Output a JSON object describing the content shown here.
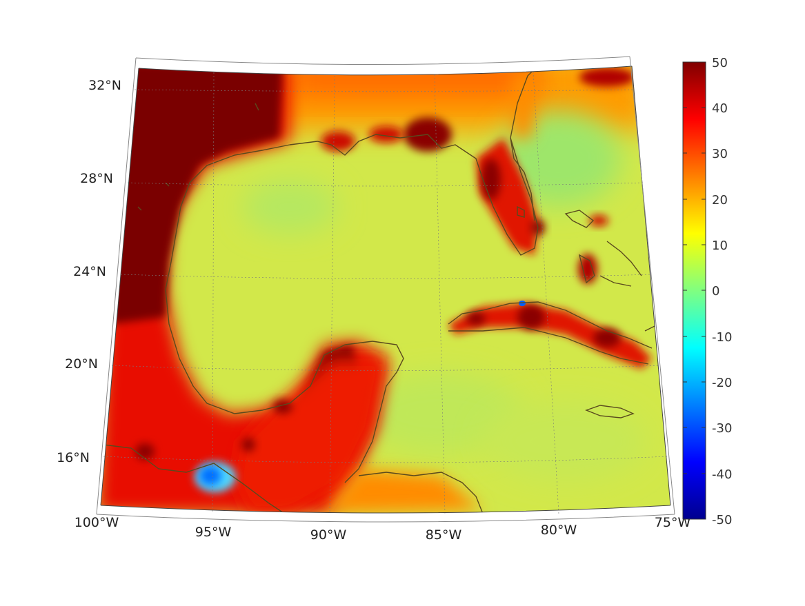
{
  "map": {
    "projection": "conic",
    "grid": true,
    "lon_labels": [
      "100°W",
      "95°W",
      "90°W",
      "85°W",
      "80°W",
      "75°W"
    ],
    "lat_labels": [
      "16°N",
      "20°N",
      "24°N",
      "28°N",
      "32°N"
    ],
    "background_color": "#d6e94a",
    "land_color": "#7a0000",
    "coast_color": "#5a4a1e"
  },
  "colorbar": {
    "colormap": "jet",
    "min": -50,
    "max": 50,
    "tick_labels": [
      "50",
      "40",
      "30",
      "20",
      "10",
      "0",
      "-10",
      "-20",
      "-30",
      "-40",
      "-50"
    ]
  }
}
